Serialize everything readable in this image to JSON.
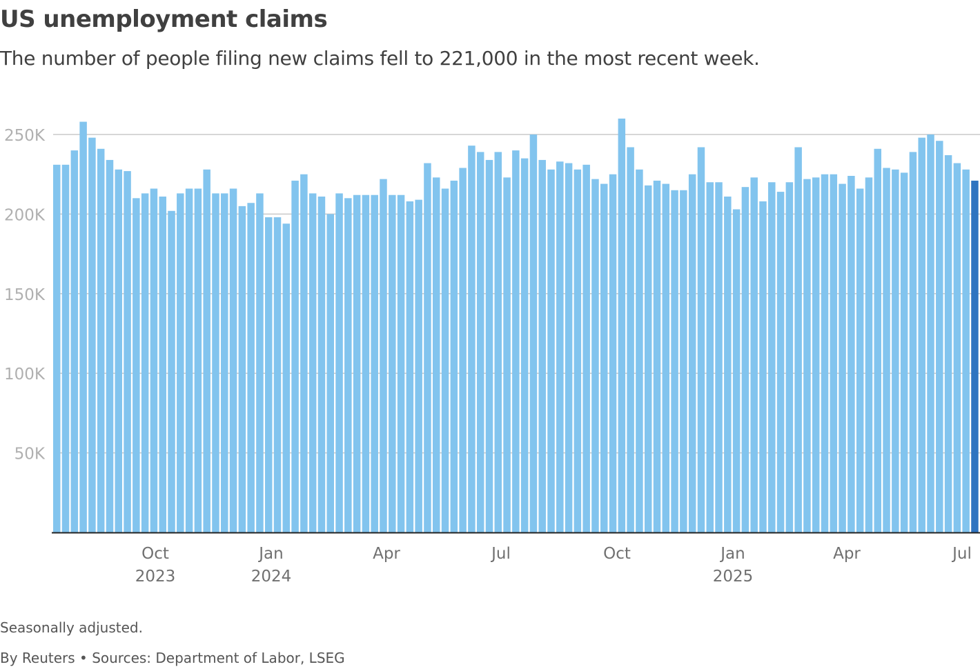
{
  "title": "US unemployment claims",
  "subtitle": "The number of people filing new claims fell to 221,000 in the most recent week.",
  "note": "Seasonally adjusted.",
  "source": "By Reuters • Sources: Department of Labor, LSEG",
  "chart_data": {
    "type": "bar",
    "title": "US unemployment claims",
    "ylim": [
      0,
      260000
    ],
    "grid": true,
    "y_ticks": [
      {
        "value": 50000,
        "label": "50K"
      },
      {
        "value": 100000,
        "label": "100K"
      },
      {
        "value": 150000,
        "label": "150K"
      },
      {
        "value": 200000,
        "label": "200K"
      },
      {
        "value": 250000,
        "label": "250K"
      }
    ],
    "x_ticks": [
      {
        "label": "Oct",
        "year": "2023"
      },
      {
        "label": "Jan",
        "year": "2024"
      },
      {
        "label": "Apr",
        "year": ""
      },
      {
        "label": "Jul",
        "year": ""
      },
      {
        "label": "Oct",
        "year": ""
      },
      {
        "label": "Jan",
        "year": "2025"
      },
      {
        "label": "Apr",
        "year": ""
      },
      {
        "label": "Jul",
        "year": ""
      }
    ],
    "bar_color": "#82c4ee",
    "highlight_color": "#2f74c0",
    "values": [
      231000,
      231000,
      240000,
      258000,
      248000,
      241000,
      234000,
      228000,
      227000,
      210000,
      213000,
      216000,
      211000,
      202000,
      213000,
      216000,
      216000,
      228000,
      213000,
      213000,
      216000,
      205000,
      207000,
      213000,
      198000,
      198000,
      194000,
      221000,
      225000,
      213000,
      211000,
      200000,
      213000,
      210000,
      212000,
      212000,
      212000,
      222000,
      212000,
      212000,
      208000,
      209000,
      232000,
      223000,
      216000,
      221000,
      229000,
      243000,
      239000,
      234000,
      239000,
      223000,
      240000,
      235000,
      250000,
      234000,
      228000,
      233000,
      232000,
      228000,
      231000,
      222000,
      219000,
      225000,
      260000,
      242000,
      228000,
      218000,
      221000,
      219000,
      215000,
      215000,
      225000,
      242000,
      220000,
      220000,
      211000,
      203000,
      217000,
      223000,
      208000,
      220000,
      214000,
      220000,
      242000,
      222000,
      223000,
      225000,
      225000,
      219000,
      224000,
      216000,
      223000,
      241000,
      229000,
      228000,
      226000,
      239000,
      248000,
      250000,
      246000,
      237000,
      232000,
      228000,
      221000
    ]
  }
}
